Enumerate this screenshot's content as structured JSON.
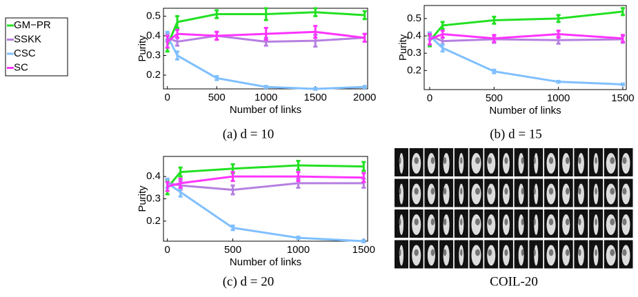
{
  "chart_data": [
    {
      "type": "line",
      "caption": "(a) d = 10",
      "xlabel": "Number of links",
      "ylabel": "Purity",
      "x": [
        0,
        100,
        500,
        1000,
        1500,
        2000
      ],
      "xlim": [
        -40,
        2030
      ],
      "xticks": [
        0,
        500,
        1000,
        1500,
        2000
      ],
      "ylim": [
        0.13,
        0.54
      ],
      "yticks": [
        0.2,
        0.3,
        0.4,
        0.5
      ],
      "series": [
        {
          "name": "GM−PR",
          "color": "#22e022",
          "values": [
            0.35,
            0.47,
            0.51,
            0.51,
            0.52,
            0.505
          ],
          "errors": [
            0.03,
            0.03,
            0.02,
            0.03,
            0.02,
            0.02
          ]
        },
        {
          "name": "SSKK",
          "color": "#b57fe0",
          "values": [
            0.39,
            0.37,
            0.4,
            0.37,
            0.375,
            0.39
          ],
          "errors": [
            0.02,
            0.02,
            0.02,
            0.02,
            0.03,
            0.02
          ]
        },
        {
          "name": "CSC",
          "color": "#7fbfff",
          "values": [
            0.4,
            0.3,
            0.185,
            0.14,
            0.13,
            0.14
          ],
          "errors": [
            0.02,
            0.02,
            0.01,
            0.005,
            0.005,
            0.005
          ]
        },
        {
          "name": "SC",
          "color": "#ff33ff",
          "values": [
            0.37,
            0.41,
            0.4,
            0.41,
            0.42,
            0.39
          ],
          "errors": [
            0.03,
            0.02,
            0.02,
            0.03,
            0.03,
            0.02
          ]
        }
      ]
    },
    {
      "type": "line",
      "caption": "(b) d = 15",
      "xlabel": "Number of links",
      "ylabel": "Purity",
      "x": [
        0,
        100,
        500,
        1000,
        1500
      ],
      "xlim": [
        -43,
        1527
      ],
      "xticks": [
        0,
        500,
        1000,
        1500
      ],
      "ylim": [
        0.09,
        0.575
      ],
      "yticks": [
        0.2,
        0.3,
        0.4,
        0.5
      ],
      "series": [
        {
          "values": [
            0.37,
            0.46,
            0.49,
            0.5,
            0.54
          ],
          "errors": [
            0.03,
            0.02,
            0.02,
            0.02,
            0.02
          ]
        },
        {
          "values": [
            0.4,
            0.37,
            0.38,
            0.375,
            0.38
          ],
          "errors": [
            0.02,
            0.02,
            0.02,
            0.02,
            0.02
          ]
        },
        {
          "values": [
            0.4,
            0.33,
            0.195,
            0.135,
            0.12
          ],
          "errors": [
            0.02,
            0.02,
            0.01,
            0.005,
            0.005
          ]
        },
        {
          "values": [
            0.38,
            0.41,
            0.385,
            0.41,
            0.385
          ],
          "errors": [
            0.03,
            0.02,
            0.02,
            0.02,
            0.02
          ]
        }
      ]
    },
    {
      "type": "line",
      "caption": "(c) d = 20",
      "xlabel": "Number of links",
      "ylabel": "Purity",
      "x": [
        0,
        100,
        500,
        1000,
        1500
      ],
      "xlim": [
        -30,
        1530
      ],
      "xticks": [
        0,
        500,
        1000,
        1500
      ],
      "ylim": [
        0.11,
        0.49
      ],
      "yticks": [
        0.2,
        0.3,
        0.4
      ],
      "series": [
        {
          "values": [
            0.35,
            0.42,
            0.435,
            0.45,
            0.445
          ],
          "errors": [
            0.03,
            0.02,
            0.02,
            0.02,
            0.02
          ]
        },
        {
          "values": [
            0.37,
            0.36,
            0.34,
            0.37,
            0.37
          ],
          "errors": [
            0.02,
            0.02,
            0.02,
            0.02,
            0.02
          ]
        },
        {
          "values": [
            0.37,
            0.33,
            0.17,
            0.125,
            0.11
          ],
          "errors": [
            0.02,
            0.02,
            0.01,
            0.005,
            0.005
          ]
        },
        {
          "values": [
            0.355,
            0.37,
            0.4,
            0.4,
            0.395
          ],
          "errors": [
            0.02,
            0.02,
            0.02,
            0.02,
            0.02
          ]
        }
      ]
    }
  ],
  "image_panel": {
    "caption": "COIL-20"
  }
}
